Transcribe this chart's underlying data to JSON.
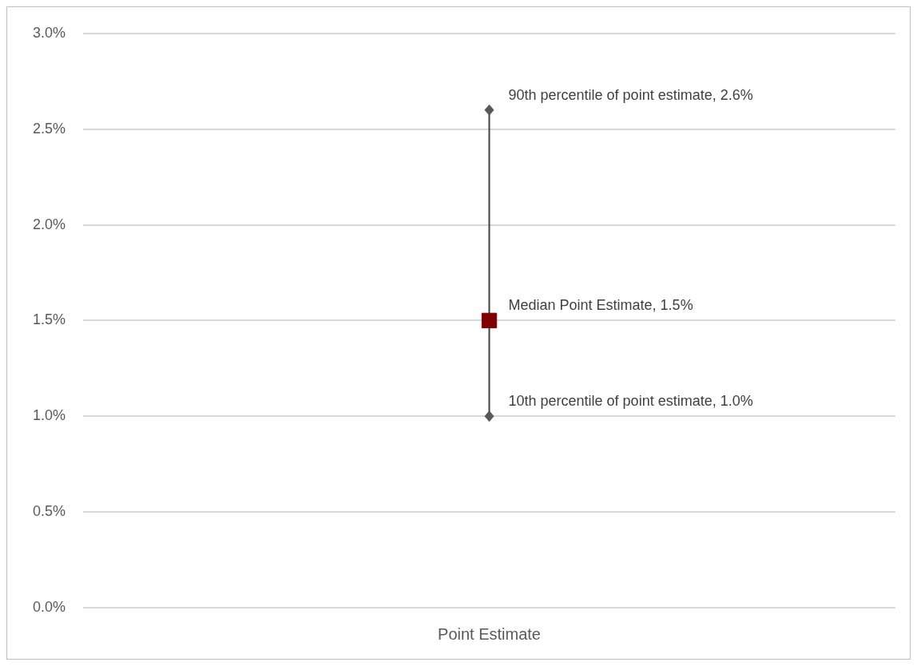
{
  "chart_data": {
    "type": "scatter",
    "categories": [
      "Point Estimate"
    ],
    "series": [
      {
        "color": "#7f0000",
        "marker": "square",
        "values": [
          1.5
        ],
        "errors": [
          [
            1.0,
            2.6
          ]
        ]
      }
    ],
    "ylim": [
      0,
      3
    ],
    "yticks": [
      {
        "value": 0,
        "label": "0.0%"
      },
      {
        "value": 0.5,
        "label": "0.5%"
      },
      {
        "value": 1,
        "label": "1.0%"
      },
      {
        "value": 1.5,
        "label": "1.5%"
      },
      {
        "value": 2,
        "label": "2.0%"
      },
      {
        "value": 2.5,
        "label": "2.5%"
      },
      {
        "value": 3,
        "label": "3.0%"
      }
    ],
    "grid": "y",
    "legend": false,
    "annotations": [
      {
        "text": "90th percentile of point estimate, 2.6%",
        "x": "Point Estimate",
        "y": 2.6
      },
      {
        "text": "Median Point Estimate, 1.5%",
        "x": "Point Estimate",
        "y": 1.5
      },
      {
        "text": "10th percentile of point estimate, 1.0%",
        "x": "Point Estimate",
        "y": 1.0
      }
    ]
  }
}
